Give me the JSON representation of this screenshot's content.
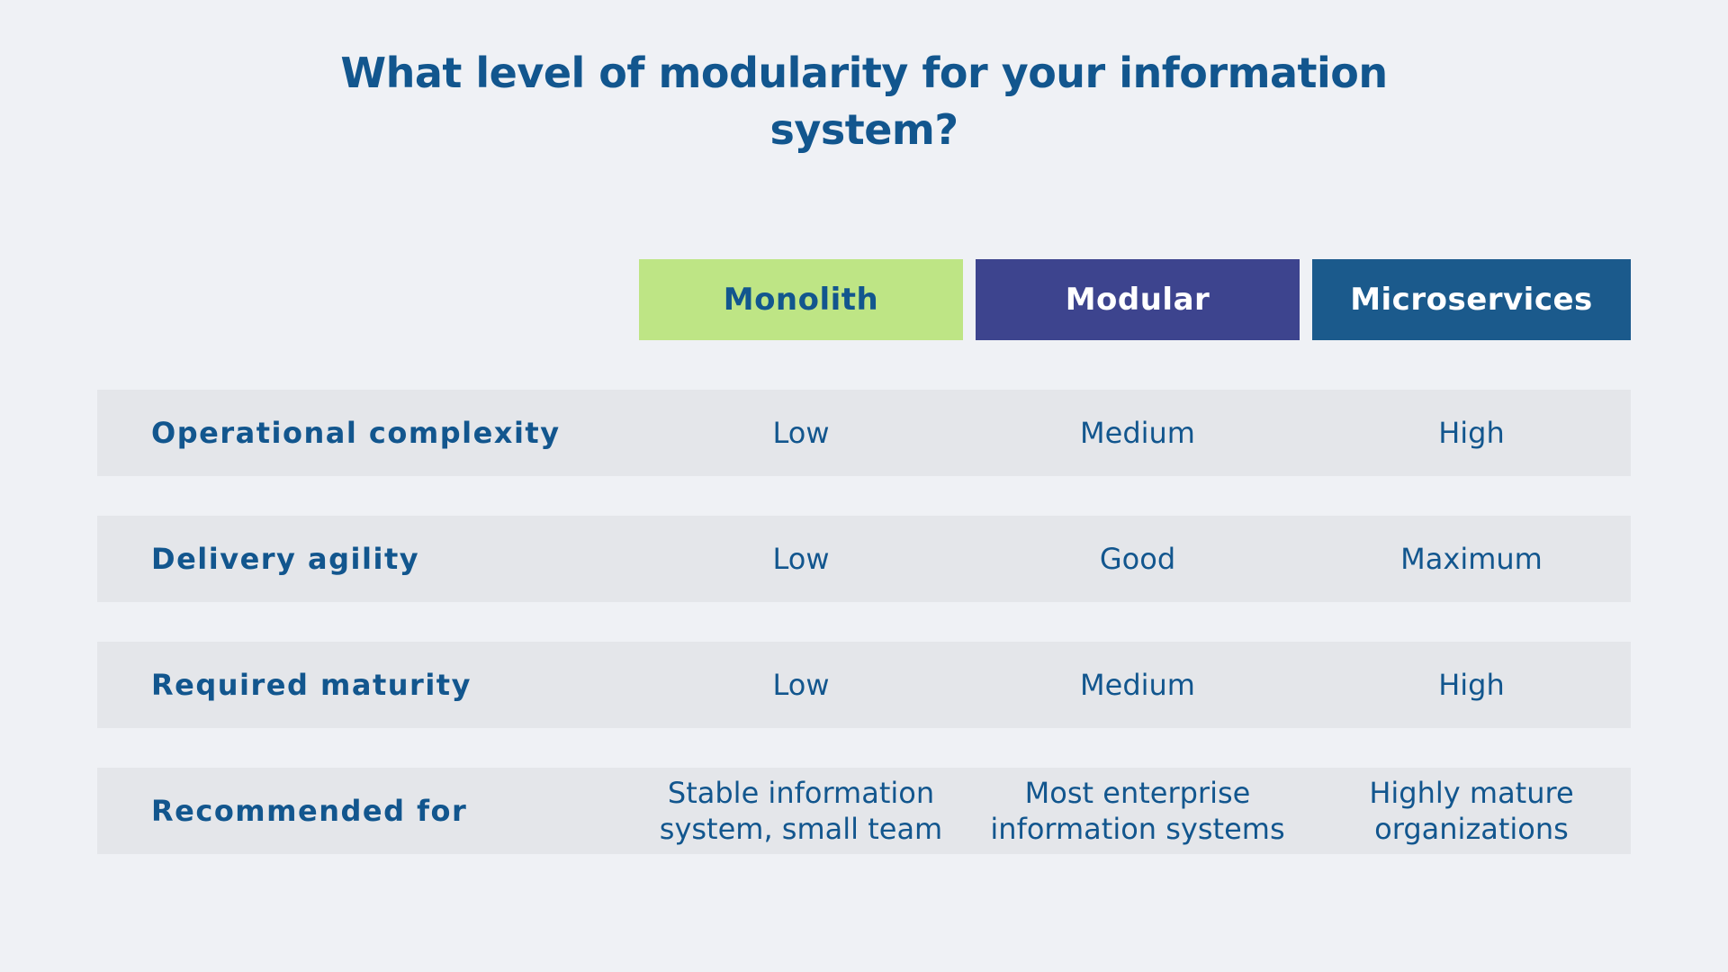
{
  "title": {
    "line1": "What level of modularity for your information",
    "line2": "system?"
  },
  "colors": {
    "page_bg": "#eff1f5",
    "row_bg": "#e4e6ea",
    "text": "#12568e"
  },
  "chart_data": {
    "type": "table",
    "title": "What level of modularity for your information system?",
    "columns": [
      {
        "label": "Monolith",
        "bg": "#bee585",
        "text_color": "#12568e"
      },
      {
        "label": "Modular",
        "bg": "#3d448e",
        "text_color": "#ffffff"
      },
      {
        "label": "Microservices",
        "bg": "#1b5a8c",
        "text_color": "#ffffff"
      }
    ],
    "rows": [
      {
        "label": "Operational complexity",
        "values": [
          "Low",
          "Medium",
          "High"
        ]
      },
      {
        "label": "Delivery agility",
        "values": [
          "Low",
          "Good",
          "Maximum"
        ]
      },
      {
        "label": "Required maturity",
        "values": [
          "Low",
          "Medium",
          "High"
        ]
      },
      {
        "label": "Recommended for",
        "values": [
          "Stable information system, small team",
          "Most enterprise information systems",
          "Highly mature organizations"
        ]
      }
    ]
  }
}
